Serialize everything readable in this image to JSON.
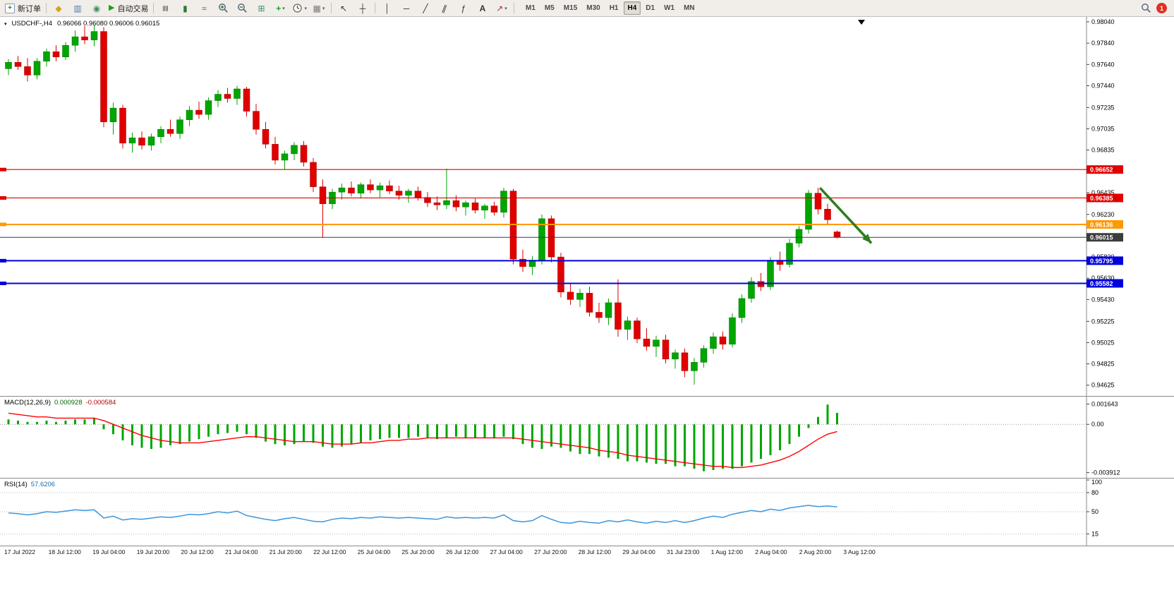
{
  "toolbar": {
    "badge": "1",
    "items": [
      {
        "kind": "labeled",
        "name": "new-order-button",
        "icon": "box-plus",
        "label": "新订单"
      },
      {
        "kind": "sep",
        "name": "separator"
      },
      {
        "kind": "glyph",
        "name": "market-watch-icon",
        "glyph": "◆",
        "color": "#d9a21b"
      },
      {
        "kind": "glyph",
        "name": "data-window-icon",
        "glyph": "▥",
        "color": "#4a78b8"
      },
      {
        "kind": "glyph",
        "name": "strategy-tester-icon",
        "glyph": "◉",
        "color": "#3f8f5f"
      },
      {
        "kind": "labeled",
        "name": "auto-trading-button",
        "icon": "play",
        "label": "自动交易"
      },
      {
        "kind": "sep",
        "name": "separator"
      },
      {
        "kind": "glyph",
        "name": "bar-chart-icon",
        "glyph": "≣",
        "color": "#555555",
        "rot": 90
      },
      {
        "kind": "glyph",
        "name": "candlestick-chart-icon",
        "glyph": "▮",
        "color": "#2e7d32"
      },
      {
        "kind": "glyph",
        "name": "line-chart-icon",
        "glyph": "≈",
        "color": "#555555"
      },
      {
        "kind": "svg",
        "name": "zoom-in-icon",
        "icon": "mag-plus"
      },
      {
        "kind": "svg",
        "name": "zoom-out-icon",
        "icon": "mag-minus"
      },
      {
        "kind": "glyph",
        "name": "tile-windows-icon",
        "glyph": "⊞",
        "color": "#3f8f5f"
      },
      {
        "kind": "glyph",
        "name": "indicators-icon",
        "glyph": "+",
        "color": "#1aa31a",
        "bold": true,
        "dropdown": true
      },
      {
        "kind": "svg",
        "name": "periods-icon",
        "icon": "clock",
        "dropdown": true
      },
      {
        "kind": "glyph",
        "name": "templates-icon",
        "glyph": "▦",
        "color": "#777777",
        "dropdown": true
      },
      {
        "kind": "sep",
        "name": "separator"
      },
      {
        "kind": "glyph",
        "name": "cursor-icon",
        "glyph": "↖",
        "color": "#333333"
      },
      {
        "kind": "glyph",
        "name": "crosshair-icon",
        "glyph": "┼",
        "color": "#333333"
      },
      {
        "kind": "sep",
        "name": "separator"
      },
      {
        "kind": "glyph",
        "name": "vertical-line-icon",
        "glyph": "│",
        "color": "#333333"
      },
      {
        "kind": "glyph",
        "name": "horizontal-line-icon",
        "glyph": "─",
        "color": "#333333"
      },
      {
        "kind": "glyph",
        "name": "trendline-icon",
        "glyph": "╱",
        "color": "#333333"
      },
      {
        "kind": "glyph",
        "name": "equidistant-channel-icon",
        "glyph": "∥",
        "color": "#333333",
        "rot": 20
      },
      {
        "kind": "glyph",
        "name": "fibonacci-icon",
        "glyph": "ƒ",
        "color": "#333333"
      },
      {
        "kind": "glyph",
        "name": "text-label-icon",
        "glyph": "A",
        "color": "#333333",
        "bold": true
      },
      {
        "kind": "glyph",
        "name": "arrows-icon",
        "glyph": "↗",
        "color": "#b03030",
        "dropdown": true
      },
      {
        "kind": "sep",
        "name": "separator"
      }
    ],
    "timeframes": {
      "items": [
        "M1",
        "M5",
        "M15",
        "M30",
        "H1",
        "H4",
        "D1",
        "W1",
        "MN"
      ],
      "active": "H4"
    }
  },
  "chart": {
    "symbol_period": "USDCHF-,H4",
    "ohlc_text": "0.96066 0.96080 0.96006 0.96015"
  },
  "macd": {
    "name": "MACD(12,26,9)",
    "value_main": "0.000928",
    "value_signal": "-0.000584"
  },
  "rsi": {
    "name": "RSI(14)",
    "value": "57.6206"
  },
  "colors": {
    "up": "#00a600",
    "down": "#e00000",
    "up_edge": "#007000",
    "down_edge": "#a00000",
    "macd_hist": "#00a600",
    "macd_signal": "#ff0000",
    "rsi_line": "#3a96dd",
    "current_price": "#3a3a3a",
    "arrow": "#2e7d1f"
  },
  "chart_data": {
    "type": "candlestick",
    "symbol": "USDCHF-",
    "timeframe": "H4",
    "ylim": [
      0.9457,
      0.9806
    ],
    "price_axis": [
      "0.98040",
      "0.97840",
      "0.97640",
      "0.97440",
      "0.97235",
      "0.97035",
      "0.96835",
      "0.96635",
      "0.96435",
      "0.96230",
      "0.96030",
      "0.95830",
      "0.95630",
      "0.95430",
      "0.95225",
      "0.95025",
      "0.94825",
      "0.94625"
    ],
    "levels": [
      {
        "value": 0.96652,
        "label": "0.96652",
        "color": "#e00000",
        "width": 1.2
      },
      {
        "value": 0.96385,
        "label": "0.96385",
        "color": "#e00000",
        "width": 1.2
      },
      {
        "value": 0.96136,
        "label": "0.96136",
        "color": "#ff9900",
        "width": 2
      },
      {
        "value": 0.95795,
        "label": "0.95795",
        "color": "#0000dd",
        "width": 2
      },
      {
        "value": 0.95582,
        "label": "0.95582",
        "color": "#0000dd",
        "width": 2
      }
    ],
    "current_price": {
      "value": 0.96015,
      "label": "0.96015"
    },
    "annotation_arrow": {
      "from_index": 85.2,
      "from_price": 0.9648,
      "to_index": 90.6,
      "to_price": 0.9596
    },
    "candles": [
      [
        0.976,
        0.9769,
        0.9754,
        0.9766
      ],
      [
        0.9766,
        0.9772,
        0.9759,
        0.9762
      ],
      [
        0.9762,
        0.977,
        0.9748,
        0.9754
      ],
      [
        0.9754,
        0.977,
        0.975,
        0.9767
      ],
      [
        0.9767,
        0.9779,
        0.9762,
        0.9776
      ],
      [
        0.9776,
        0.9782,
        0.9767,
        0.9771
      ],
      [
        0.9771,
        0.9785,
        0.9768,
        0.9782
      ],
      [
        0.9782,
        0.9796,
        0.9776,
        0.979
      ],
      [
        0.979,
        0.98,
        0.9783,
        0.9787
      ],
      [
        0.9787,
        0.9801,
        0.9781,
        0.9795
      ],
      [
        0.9795,
        0.9799,
        0.9705,
        0.971
      ],
      [
        0.971,
        0.9728,
        0.9698,
        0.9723
      ],
      [
        0.9723,
        0.9726,
        0.9685,
        0.969
      ],
      [
        0.969,
        0.97,
        0.9681,
        0.9695
      ],
      [
        0.9695,
        0.9701,
        0.9684,
        0.9688
      ],
      [
        0.9688,
        0.9699,
        0.9683,
        0.9696
      ],
      [
        0.9696,
        0.9706,
        0.969,
        0.9703
      ],
      [
        0.9703,
        0.9712,
        0.9696,
        0.9699
      ],
      [
        0.9699,
        0.9715,
        0.9694,
        0.9712
      ],
      [
        0.9712,
        0.9725,
        0.9706,
        0.9721
      ],
      [
        0.9721,
        0.9729,
        0.9713,
        0.9717
      ],
      [
        0.9717,
        0.9733,
        0.9712,
        0.973
      ],
      [
        0.973,
        0.974,
        0.9724,
        0.9736
      ],
      [
        0.9736,
        0.9742,
        0.9728,
        0.9732
      ],
      [
        0.9732,
        0.9744,
        0.9726,
        0.9741
      ],
      [
        0.9741,
        0.9743,
        0.9715,
        0.972
      ],
      [
        0.972,
        0.9727,
        0.9698,
        0.9703
      ],
      [
        0.9703,
        0.971,
        0.9685,
        0.9689
      ],
      [
        0.9689,
        0.9696,
        0.967,
        0.9674
      ],
      [
        0.9674,
        0.9683,
        0.9665,
        0.968
      ],
      [
        0.968,
        0.9691,
        0.9674,
        0.9688
      ],
      [
        0.9688,
        0.9692,
        0.9668,
        0.9672
      ],
      [
        0.9672,
        0.9676,
        0.9644,
        0.9649
      ],
      [
        0.9649,
        0.9656,
        0.9601,
        0.9633
      ],
      [
        0.9633,
        0.9647,
        0.9628,
        0.9644
      ],
      [
        0.9644,
        0.9652,
        0.9637,
        0.9648
      ],
      [
        0.9648,
        0.9654,
        0.964,
        0.9643
      ],
      [
        0.9643,
        0.9653,
        0.9638,
        0.9651
      ],
      [
        0.9651,
        0.9656,
        0.9643,
        0.9646
      ],
      [
        0.9646,
        0.9653,
        0.9639,
        0.965
      ],
      [
        0.965,
        0.9655,
        0.9642,
        0.9645
      ],
      [
        0.9645,
        0.965,
        0.9637,
        0.9641
      ],
      [
        0.9641,
        0.9647,
        0.9634,
        0.9645
      ],
      [
        0.9645,
        0.9649,
        0.9636,
        0.9639
      ],
      [
        0.9639,
        0.9644,
        0.963,
        0.9634
      ],
      [
        0.9634,
        0.964,
        0.9627,
        0.9632
      ],
      [
        0.9632,
        0.9666,
        0.9628,
        0.9636
      ],
      [
        0.9636,
        0.9641,
        0.9626,
        0.963
      ],
      [
        0.963,
        0.9636,
        0.9622,
        0.9634
      ],
      [
        0.9634,
        0.9638,
        0.9624,
        0.9627
      ],
      [
        0.9627,
        0.9633,
        0.9619,
        0.9631
      ],
      [
        0.9631,
        0.9635,
        0.9622,
        0.9625
      ],
      [
        0.9625,
        0.9648,
        0.962,
        0.9645
      ],
      [
        0.9645,
        0.9647,
        0.9576,
        0.9581
      ],
      [
        0.9581,
        0.959,
        0.9569,
        0.9574
      ],
      [
        0.9574,
        0.9584,
        0.9566,
        0.958
      ],
      [
        0.958,
        0.9623,
        0.9576,
        0.9619
      ],
      [
        0.9619,
        0.9622,
        0.9578,
        0.9583
      ],
      [
        0.9583,
        0.9587,
        0.9545,
        0.955
      ],
      [
        0.955,
        0.9558,
        0.9538,
        0.9543
      ],
      [
        0.9543,
        0.9553,
        0.9536,
        0.9549
      ],
      [
        0.9549,
        0.9555,
        0.9527,
        0.9531
      ],
      [
        0.9531,
        0.954,
        0.9521,
        0.9526
      ],
      [
        0.9526,
        0.9544,
        0.9519,
        0.954
      ],
      [
        0.954,
        0.9562,
        0.9508,
        0.9515
      ],
      [
        0.9515,
        0.9527,
        0.9505,
        0.9523
      ],
      [
        0.9523,
        0.9526,
        0.9502,
        0.9506
      ],
      [
        0.9506,
        0.9516,
        0.9495,
        0.9499
      ],
      [
        0.9499,
        0.9509,
        0.9489,
        0.9505
      ],
      [
        0.9505,
        0.951,
        0.9483,
        0.9487
      ],
      [
        0.9487,
        0.9496,
        0.9478,
        0.9493
      ],
      [
        0.9493,
        0.9497,
        0.947,
        0.9476
      ],
      [
        0.9476,
        0.9488,
        0.9463,
        0.9484
      ],
      [
        0.9484,
        0.95,
        0.9479,
        0.9497
      ],
      [
        0.9497,
        0.9512,
        0.9492,
        0.9508
      ],
      [
        0.9508,
        0.9513,
        0.9496,
        0.9501
      ],
      [
        0.9501,
        0.953,
        0.9498,
        0.9526
      ],
      [
        0.9526,
        0.9548,
        0.9521,
        0.9544
      ],
      [
        0.9544,
        0.9564,
        0.954,
        0.956
      ],
      [
        0.956,
        0.9568,
        0.9551,
        0.9555
      ],
      [
        0.9555,
        0.9583,
        0.9552,
        0.958
      ],
      [
        0.958,
        0.9588,
        0.957,
        0.9576
      ],
      [
        0.9576,
        0.96,
        0.9573,
        0.9596
      ],
      [
        0.9596,
        0.9612,
        0.9592,
        0.9609
      ],
      [
        0.9609,
        0.9646,
        0.9605,
        0.9643
      ],
      [
        0.9643,
        0.9648,
        0.9623,
        0.9628
      ],
      [
        0.9628,
        0.9633,
        0.9613,
        0.9618
      ],
      [
        0.96066,
        0.9608,
        0.96006,
        0.96015
      ]
    ],
    "macd_ylim": [
      -0.00405,
      0.0019
    ],
    "macd_axis": [
      "0.001643",
      "0.00",
      "-0.003912"
    ],
    "macd_histogram": [
      0.0004,
      0.0003,
      0.0002,
      0.0002,
      0.0003,
      0.0002,
      0.0003,
      0.0004,
      0.0004,
      0.0005,
      -0.0004,
      -0.0008,
      -0.0013,
      -0.0017,
      -0.0019,
      -0.002,
      -0.0019,
      -0.0017,
      -0.0016,
      -0.0014,
      -0.0012,
      -0.001,
      -0.0008,
      -0.0007,
      -0.0006,
      -0.0008,
      -0.0011,
      -0.0014,
      -0.0016,
      -0.0017,
      -0.0016,
      -0.0014,
      -0.0015,
      -0.0018,
      -0.0019,
      -0.0018,
      -0.0016,
      -0.0015,
      -0.0013,
      -0.0012,
      -0.0011,
      -0.0011,
      -0.0011,
      -0.001,
      -0.0011,
      -0.0012,
      -0.0011,
      -0.001,
      -0.0011,
      -0.0011,
      -0.0011,
      -0.0011,
      -0.001,
      -0.0012,
      -0.0016,
      -0.0019,
      -0.002,
      -0.0018,
      -0.0019,
      -0.0022,
      -0.0024,
      -0.0024,
      -0.0026,
      -0.0027,
      -0.0028,
      -0.003,
      -0.003,
      -0.0031,
      -0.0032,
      -0.0032,
      -0.0034,
      -0.0034,
      -0.0036,
      -0.0038,
      -0.0037,
      -0.0036,
      -0.0036,
      -0.0034,
      -0.0031,
      -0.0028,
      -0.0025,
      -0.0021,
      -0.0016,
      -0.001,
      -0.0003,
      0.0006,
      0.0016,
      0.000928
    ],
    "macd_signal": [
      0.0009,
      0.0008,
      0.0007,
      0.0006,
      0.0006,
      0.0005,
      0.0005,
      0.0005,
      0.0005,
      0.0005,
      0.0003,
      0.0,
      -0.0003,
      -0.0006,
      -0.0009,
      -0.0011,
      -0.0013,
      -0.0014,
      -0.0015,
      -0.0015,
      -0.0015,
      -0.0014,
      -0.0013,
      -0.0012,
      -0.0011,
      -0.001,
      -0.001,
      -0.0011,
      -0.0012,
      -0.0013,
      -0.0014,
      -0.0014,
      -0.0014,
      -0.0015,
      -0.0016,
      -0.0016,
      -0.0016,
      -0.0015,
      -0.0015,
      -0.0014,
      -0.0013,
      -0.0013,
      -0.0012,
      -0.0012,
      -0.0011,
      -0.0011,
      -0.0011,
      -0.0011,
      -0.0011,
      -0.0011,
      -0.0011,
      -0.0011,
      -0.0011,
      -0.0011,
      -0.0012,
      -0.0013,
      -0.0014,
      -0.0015,
      -0.0016,
      -0.0017,
      -0.0018,
      -0.0019,
      -0.0021,
      -0.0022,
      -0.0023,
      -0.0025,
      -0.0026,
      -0.0027,
      -0.0028,
      -0.0029,
      -0.003,
      -0.0031,
      -0.0032,
      -0.0033,
      -0.0034,
      -0.0034,
      -0.0035,
      -0.0035,
      -0.0034,
      -0.0033,
      -0.0031,
      -0.0029,
      -0.0026,
      -0.0022,
      -0.0017,
      -0.0012,
      -0.0008,
      -0.000584
    ],
    "rsi_ylim": [
      0,
      100
    ],
    "rsi_axis": [
      "100",
      "80",
      "50",
      "15"
    ],
    "rsi_levels": [
      80,
      50,
      15
    ],
    "rsi_values": [
      48,
      47,
      45,
      47,
      50,
      49,
      51,
      53,
      52,
      53,
      40,
      43,
      37,
      39,
      38,
      40,
      42,
      41,
      43,
      46,
      45,
      47,
      50,
      48,
      51,
      44,
      41,
      38,
      36,
      39,
      41,
      38,
      35,
      34,
      38,
      40,
      39,
      41,
      40,
      42,
      41,
      40,
      41,
      40,
      39,
      38,
      42,
      40,
      41,
      40,
      41,
      40,
      45,
      36,
      34,
      36,
      44,
      38,
      33,
      32,
      35,
      33,
      32,
      36,
      34,
      37,
      34,
      32,
      35,
      33,
      36,
      33,
      36,
      40,
      43,
      41,
      46,
      49,
      52,
      50,
      54,
      52,
      56,
      58,
      60,
      58,
      59,
      57.62
    ],
    "time_axis": [
      "17 Jul 2022",
      "18 Jul 12:00",
      "19 Jul 04:00",
      "19 Jul 20:00",
      "20 Jul 12:00",
      "21 Jul 04:00",
      "21 Jul 20:00",
      "22 Jul 12:00",
      "25 Jul 04:00",
      "25 Jul 20:00",
      "26 Jul 12:00",
      "27 Jul 04:00",
      "27 Jul 20:00",
      "28 Jul 12:00",
      "29 Jul 04:00",
      "31 Jul 23:00",
      "1 Aug 12:00",
      "2 Aug 04:00",
      "2 Aug 20:00",
      "3 Aug 12:00"
    ]
  }
}
